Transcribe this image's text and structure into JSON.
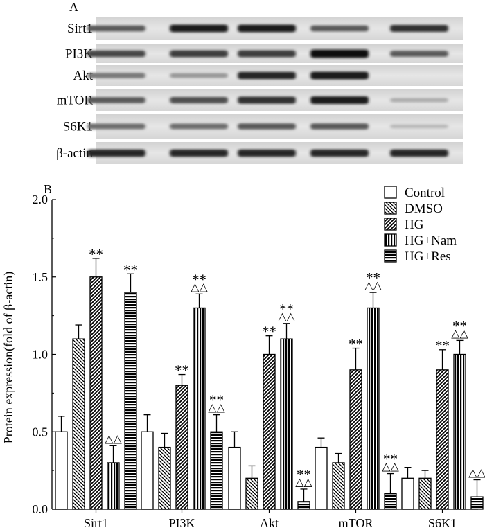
{
  "panel_a": {
    "label": "A",
    "rows": [
      "Sirt1",
      "PI3K",
      "Akt",
      "mTOR",
      "S6K1",
      "β-actin"
    ],
    "band_intensity": [
      [
        0.55,
        0.85,
        0.85,
        0.55,
        0.75
      ],
      [
        0.65,
        0.7,
        0.7,
        0.95,
        0.55
      ],
      [
        0.4,
        0.25,
        0.8,
        0.85,
        0.0
      ],
      [
        0.55,
        0.6,
        0.75,
        0.85,
        0.15
      ],
      [
        0.45,
        0.45,
        0.55,
        0.55,
        0.08
      ],
      [
        0.8,
        0.8,
        0.8,
        0.8,
        0.8
      ]
    ]
  },
  "panel_b": {
    "label": "B"
  },
  "chart_data": {
    "type": "bar",
    "title": "",
    "xlabel": "",
    "ylabel": "Protein expression(fold of β-actin)",
    "ylim": [
      0,
      2.0
    ],
    "yticks": [
      "0.0",
      "0.5",
      "1.0",
      "1.5",
      "2.0"
    ],
    "categories": [
      "Sirt1",
      "PI3K",
      "Akt",
      "mTOR",
      "S6K1"
    ],
    "legend_position": "top-right",
    "series": [
      {
        "name": "Control",
        "pattern": "empty",
        "values": [
          0.5,
          0.5,
          0.4,
          0.4,
          0.2
        ],
        "errors": [
          0.1,
          0.11,
          0.1,
          0.06,
          0.07
        ],
        "marks": [
          "",
          "",
          "",
          "",
          ""
        ]
      },
      {
        "name": "DMSO",
        "pattern": "back-diagonal",
        "values": [
          1.1,
          0.4,
          0.2,
          0.3,
          0.2
        ],
        "errors": [
          0.09,
          0.09,
          0.08,
          0.06,
          0.05
        ],
        "marks": [
          "",
          "",
          "",
          "",
          ""
        ]
      },
      {
        "name": "HG",
        "pattern": "forward-diagonal",
        "values": [
          1.5,
          0.8,
          1.0,
          0.9,
          0.9
        ],
        "errors": [
          0.12,
          0.07,
          0.12,
          0.14,
          0.13
        ],
        "marks": [
          "**",
          "**",
          "**",
          "**",
          "**"
        ]
      },
      {
        "name": "HG+Nam",
        "pattern": "vertical",
        "values": [
          0.3,
          1.3,
          1.1,
          1.3,
          1.0
        ],
        "errors": [
          0.11,
          0.09,
          0.1,
          0.1,
          0.09
        ],
        "marks": [
          "△△",
          "**|△△",
          "**|△△",
          "**|△△",
          "**|△△"
        ]
      },
      {
        "name": "HG+Res",
        "pattern": "horizontal",
        "values": [
          1.4,
          0.5,
          0.05,
          0.1,
          0.08
        ],
        "errors": [
          0.12,
          0.11,
          0.08,
          0.13,
          0.11
        ],
        "marks": [
          "**",
          "**|△△",
          "**|△△",
          "**|△△",
          "△△"
        ]
      }
    ]
  }
}
